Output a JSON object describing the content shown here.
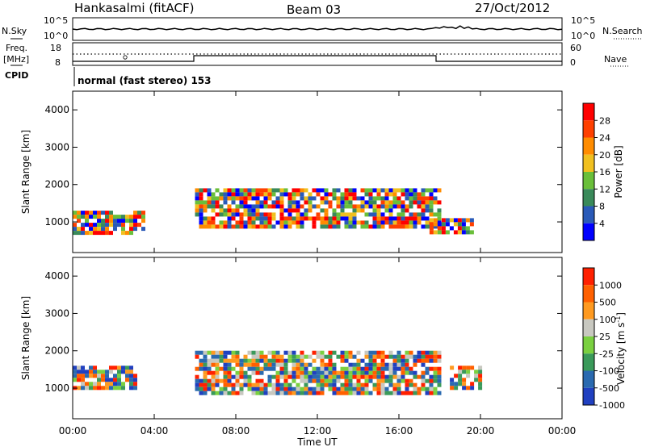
{
  "header": {
    "station": "Hankasalmi (fitACF)",
    "beam": "Beam 03",
    "date": "27/Oct/2012"
  },
  "noise_panel": {
    "left_label": "N.Sky",
    "right_label": "N.Search",
    "ticks": [
      "10^5",
      "10^0"
    ]
  },
  "freq_panel": {
    "left_label": "Freq.",
    "left_unit": "[MHz]",
    "left_ticks": [
      "18",
      "8"
    ],
    "right_label": "Nave",
    "right_ticks": [
      "60",
      "0"
    ]
  },
  "cpid": {
    "label": "CPID",
    "mode": "normal (fast stereo) 153"
  },
  "colors": {
    "power": [
      "#0000ff",
      "#2a5ab8",
      "#3a8a5a",
      "#6abf3a",
      "#f0c020",
      "#ff8c00",
      "#ff4000",
      "#ff0000"
    ],
    "velocity": [
      "#2040c0",
      "#2a6ab0",
      "#3a9a5a",
      "#7ad040",
      "#c8c8c0",
      "#ff9a20",
      "#ff6000",
      "#ff2000"
    ]
  },
  "chart_data": [
    {
      "type": "heatmap",
      "title": "",
      "xlabel": "Time UT",
      "ylabel": "Slant Range [km]",
      "xlim": [
        "00:00",
        "00:00"
      ],
      "ylim": [
        180,
        4500
      ],
      "x_ticks": [
        "00:00",
        "04:00",
        "08:00",
        "12:00",
        "16:00",
        "20:00",
        "00:00"
      ],
      "y_ticks": [
        1000,
        2000,
        3000,
        4000
      ],
      "colorbar": {
        "label": "Power [dB]",
        "ticks": [
          4,
          8,
          12,
          16,
          20,
          24,
          28
        ]
      },
      "bands": [
        {
          "start_hour": 0.0,
          "end_hour": 3.5,
          "range_low_km": 700,
          "range_high_km": 1300
        },
        {
          "start_hour": 6.0,
          "end_hour": 18.0,
          "range_low_km": 850,
          "range_high_km": 1900
        },
        {
          "start_hour": 17.5,
          "end_hour": 19.5,
          "range_low_km": 700,
          "range_high_km": 1100
        }
      ]
    },
    {
      "type": "heatmap",
      "title": "",
      "xlabel": "Time UT",
      "ylabel": "Slant Range [km]",
      "xlim": [
        "00:00",
        "00:00"
      ],
      "ylim": [
        180,
        4500
      ],
      "x_ticks": [
        "00:00",
        "04:00",
        "08:00",
        "12:00",
        "16:00",
        "20:00",
        "00:00"
      ],
      "y_ticks": [
        1000,
        2000,
        3000,
        4000
      ],
      "colorbar": {
        "label": "Velocity [m s^-1]",
        "ticks": [
          1000,
          500,
          100,
          25,
          -25,
          -100,
          -500,
          -1000
        ]
      },
      "bands": [
        {
          "start_hour": 6.0,
          "end_hour": 18.0,
          "range_low_km": 850,
          "range_high_km": 2000
        },
        {
          "start_hour": 0.0,
          "end_hour": 3.0,
          "range_low_km": 1000,
          "range_high_km": 1600
        },
        {
          "start_hour": 18.5,
          "end_hour": 20.0,
          "range_low_km": 1000,
          "range_high_km": 1600
        }
      ]
    }
  ]
}
